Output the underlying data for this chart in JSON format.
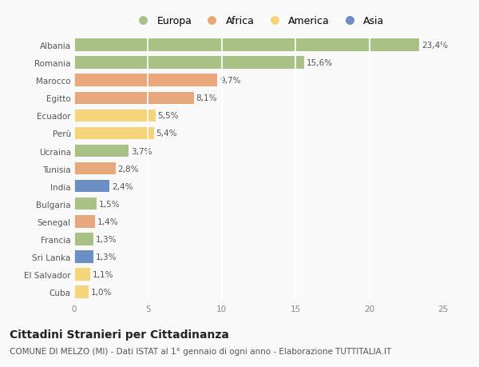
{
  "categories": [
    "Albania",
    "Romania",
    "Marocco",
    "Egitto",
    "Ecuador",
    "Perù",
    "Ucraina",
    "Tunisia",
    "India",
    "Bulgaria",
    "Senegal",
    "Francia",
    "Sri Lanka",
    "El Salvador",
    "Cuba"
  ],
  "values": [
    23.4,
    15.6,
    9.7,
    8.1,
    5.5,
    5.4,
    3.7,
    2.8,
    2.4,
    1.5,
    1.4,
    1.3,
    1.3,
    1.1,
    1.0
  ],
  "labels": [
    "23,4%",
    "15,6%",
    "9,7%",
    "8,1%",
    "5,5%",
    "5,4%",
    "3,7%",
    "2,8%",
    "2,4%",
    "1,5%",
    "1,4%",
    "1,3%",
    "1,3%",
    "1,1%",
    "1,0%"
  ],
  "regions": [
    "Europa",
    "Europa",
    "Africa",
    "Africa",
    "America",
    "America",
    "Europa",
    "Africa",
    "Asia",
    "Europa",
    "Africa",
    "Europa",
    "Asia",
    "America",
    "America"
  ],
  "colors": {
    "Europa": "#aac185",
    "Africa": "#e8a87c",
    "America": "#f5d47a",
    "Asia": "#6b8ec4"
  },
  "legend_order": [
    "Europa",
    "Africa",
    "America",
    "Asia"
  ],
  "xlim": [
    0,
    25
  ],
  "xticks": [
    0,
    5,
    10,
    15,
    20,
    25
  ],
  "title": "Cittadini Stranieri per Cittadinanza",
  "subtitle": "COMUNE DI MELZO (MI) - Dati ISTAT al 1° gennaio di ogni anno - Elaborazione TUTTITALIA.IT",
  "background_color": "#f9f9f9",
  "grid_color": "#ffffff",
  "bar_height": 0.7,
  "label_fontsize": 7.5,
  "tick_fontsize": 7.5,
  "title_fontsize": 10,
  "subtitle_fontsize": 7.5
}
